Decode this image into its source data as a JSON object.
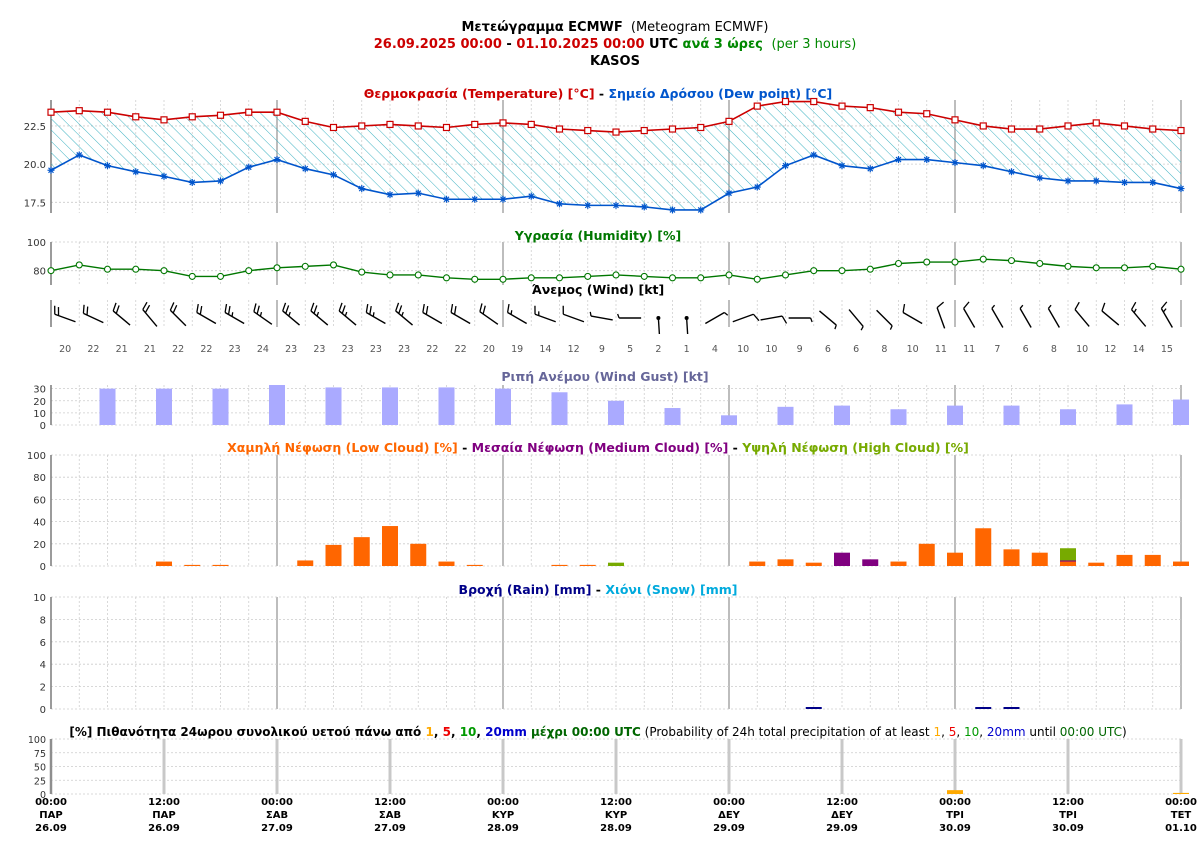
{
  "header": {
    "title_gr": "Μετεώγραμμα ECMWF",
    "title_en": "(Meteogram ECMWF)",
    "date_start": "26.09.2025 00:00",
    "date_sep": " - ",
    "date_end": "01.10.2025 00:00",
    "utc": " UTC ",
    "step_gr": "ανά 3 ώρες",
    "step_en": "(per 3 hours)",
    "location": "KASOS"
  },
  "colors": {
    "temperature": "#cc0000",
    "dew_point": "#0055cc",
    "humidity": "#007700",
    "gust_bar": "#aaaaff",
    "gust_title": "#666699",
    "low_cloud": "#ff6600",
    "medium_cloud": "#800080",
    "high_cloud": "#77aa00",
    "rain": "#000088",
    "snow": "#00aadd",
    "prob_1": "#ffaa00",
    "prob_5": "#ee0000",
    "prob_10": "#009900",
    "prob_20": "#0000cc"
  },
  "x_axis": {
    "ticks": [
      {
        "time": "00:00",
        "day": "ΠΑΡ",
        "date": "26.09"
      },
      {
        "time": "12:00",
        "day": "ΠΑΡ",
        "date": "26.09"
      },
      {
        "time": "00:00",
        "day": "ΣΑΒ",
        "date": "27.09"
      },
      {
        "time": "12:00",
        "day": "ΣΑΒ",
        "date": "27.09"
      },
      {
        "time": "00:00",
        "day": "ΚΥΡ",
        "date": "28.09"
      },
      {
        "time": "12:00",
        "day": "ΚΥΡ",
        "date": "28.09"
      },
      {
        "time": "00:00",
        "day": "ΔΕΥ",
        "date": "29.09"
      },
      {
        "time": "12:00",
        "day": "ΔΕΥ",
        "date": "29.09"
      },
      {
        "time": "00:00",
        "day": "ΤΡΙ",
        "date": "30.09"
      },
      {
        "time": "12:00",
        "day": "ΤΡΙ",
        "date": "30.09"
      },
      {
        "time": "00:00",
        "day": "ΤΕΤ",
        "date": "01.10"
      }
    ]
  },
  "chart_data": [
    {
      "id": "temp",
      "type": "line",
      "title_parts": [
        {
          "text": "Θερμοκρασία (Temperature) [°C]",
          "color": "#cc0000"
        },
        {
          "text": " - ",
          "color": "#000000"
        },
        {
          "text": "Σημείο Δρόσου (Dew point) [°C]",
          "color": "#0055cc"
        }
      ],
      "x_step_hours": 3,
      "yticks": [
        "17.5",
        "20.0",
        "22.5"
      ],
      "ylim": [
        16.8,
        24.2
      ],
      "series": [
        {
          "name": "Θερμοκρασία (Temperature) [°C]",
          "values": [
            23.4,
            23.5,
            23.4,
            23.1,
            22.9,
            23.1,
            23.2,
            23.4,
            23.4,
            22.8,
            22.4,
            22.5,
            22.6,
            22.5,
            22.4,
            22.6,
            22.7,
            22.6,
            22.3,
            22.2,
            22.1,
            22.2,
            22.3,
            22.4,
            22.8,
            23.8,
            24.1,
            24.1,
            23.8,
            23.7,
            23.4,
            23.3,
            22.9,
            22.5,
            22.3,
            22.3,
            22.5,
            22.7,
            22.5,
            22.3,
            22.2
          ]
        },
        {
          "name": "Σημείο Δρόσου (Dew point) [°C]",
          "values": [
            19.6,
            20.6,
            19.9,
            19.5,
            19.2,
            18.8,
            18.9,
            19.8,
            20.3,
            19.7,
            19.3,
            18.4,
            18.0,
            18.1,
            17.7,
            17.7,
            17.7,
            17.9,
            17.4,
            17.3,
            17.3,
            17.2,
            17.0,
            17.0,
            18.1,
            18.5,
            19.9,
            20.6,
            19.9,
            19.7,
            20.3,
            20.3,
            20.1,
            19.9,
            19.5,
            19.1,
            18.9,
            18.9,
            18.8,
            18.8,
            18.4
          ]
        }
      ]
    },
    {
      "id": "humidity",
      "type": "line",
      "title_parts": [
        {
          "text": "Υγρασία (Humidity) [%]",
          "color": "#007700"
        }
      ],
      "x_step_hours": 3,
      "yticks": [
        "80",
        "100"
      ],
      "ylim": [
        70,
        100
      ],
      "series": [
        {
          "name": "Υγρασία (Humidity) [%]",
          "values": [
            80,
            84,
            81,
            81,
            80,
            76,
            76,
            80,
            82,
            83,
            84,
            79,
            77,
            77,
            75,
            74,
            74,
            75,
            75,
            76,
            77,
            76,
            75,
            75,
            77,
            74,
            77,
            80,
            80,
            81,
            85,
            86,
            86,
            88,
            87,
            85,
            83,
            82,
            82,
            83,
            81
          ]
        }
      ]
    },
    {
      "id": "wind",
      "type": "barbs",
      "title_parts": [
        {
          "text": "Άνεμος (Wind) [kt]",
          "color": "#000000"
        }
      ],
      "x_step_hours": 3,
      "speed_labels": [
        "20",
        "22",
        "21",
        "21",
        "22",
        "22",
        "23",
        "24",
        "23",
        "23",
        "23",
        "23",
        "23",
        "22",
        "22",
        "20",
        "19",
        "14",
        "12",
        "9",
        "5",
        "2",
        "1",
        "4",
        "10",
        "10",
        "9",
        "6",
        "6",
        "8",
        "10",
        "11",
        "11",
        "7",
        "6",
        "8",
        "10",
        "12",
        "14",
        "15"
      ],
      "direction_from_deg": [
        290,
        295,
        310,
        320,
        315,
        300,
        300,
        305,
        310,
        310,
        310,
        300,
        310,
        300,
        300,
        305,
        300,
        290,
        290,
        280,
        270,
        290,
        0,
        60,
        70,
        80,
        90,
        130,
        140,
        135,
        300,
        340,
        330,
        330,
        330,
        330,
        320,
        310,
        320,
        330
      ]
    },
    {
      "id": "gust",
      "type": "bar",
      "title_parts": [
        {
          "text": "Ριπή Ανέμου (Wind Gust) [kt]",
          "color": "#666699"
        }
      ],
      "x_step_hours": 6,
      "x_offset_hours": 6,
      "yticks": [
        "0",
        "10",
        "20",
        "30"
      ],
      "ylim": [
        0,
        33
      ],
      "values": [
        30,
        30,
        30,
        33,
        31,
        31,
        31,
        30,
        27,
        20,
        14,
        8,
        15,
        16,
        13,
        16,
        16,
        13,
        17,
        21
      ]
    },
    {
      "id": "cloud",
      "type": "bar",
      "title_parts": [
        {
          "text": "Χαμηλή Νέφωση (Low Cloud) [%]",
          "color": "#ff6600"
        },
        {
          "text": " - ",
          "color": "#000000"
        },
        {
          "text": "Μεσαία Νέφωση (Medium Cloud) [%]",
          "color": "#800080"
        },
        {
          "text": " - ",
          "color": "#000000"
        },
        {
          "text": "Υψηλή Νέφωση (High Cloud) [%]",
          "color": "#77aa00"
        }
      ],
      "x_step_hours": 3,
      "yticks": [
        "0",
        "20",
        "40",
        "60",
        "80",
        "100"
      ],
      "ylim": [
        0,
        100
      ],
      "series": [
        {
          "name": "Χαμηλή Νέφωση (Low Cloud) [%]",
          "values": [
            0,
            0,
            0,
            0,
            4,
            1,
            1,
            0,
            0,
            5,
            19,
            26,
            36,
            20,
            4,
            1,
            0,
            0,
            1,
            1,
            0,
            0,
            0,
            0,
            0,
            4,
            6,
            3,
            0,
            0,
            4,
            20,
            12,
            34,
            15,
            12,
            4,
            3,
            10,
            10,
            4
          ]
        },
        {
          "name": "Μεσαία Νέφωση (Medium Cloud) [%]",
          "values": [
            0,
            0,
            0,
            0,
            0,
            0,
            0,
            0,
            0,
            0,
            0,
            0,
            0,
            0,
            0,
            0,
            0,
            0,
            0,
            0,
            0,
            0,
            0,
            0,
            0,
            0,
            0,
            0,
            12,
            6,
            0,
            0,
            0,
            0,
            0,
            0,
            5,
            0,
            0,
            0,
            0
          ]
        },
        {
          "name": "Υψηλή Νέφωση (High Cloud) [%]",
          "values": [
            0,
            0,
            0,
            0,
            0,
            0,
            0,
            0,
            0,
            0,
            0,
            0,
            0,
            0,
            0,
            0,
            0,
            0,
            0,
            0,
            3,
            0,
            0,
            0,
            0,
            0,
            0,
            0,
            0,
            0,
            0,
            0,
            0,
            0,
            0,
            0,
            16,
            0,
            0,
            0,
            0
          ]
        }
      ]
    },
    {
      "id": "precip",
      "type": "bar",
      "title_parts": [
        {
          "text": "Βροχή (Rain) [mm]",
          "color": "#000088"
        },
        {
          "text": " - ",
          "color": "#000000"
        },
        {
          "text": "Χιόνι (Snow) [mm]",
          "color": "#00aadd"
        }
      ],
      "x_step_hours": 3,
      "yticks": [
        "0",
        "2",
        "4",
        "6",
        "8",
        "10"
      ],
      "ylim": [
        0,
        10
      ],
      "series": [
        {
          "name": "Βροχή (Rain) [mm]",
          "values": [
            0,
            0,
            0,
            0,
            0,
            0,
            0,
            0,
            0,
            0,
            0,
            0,
            0,
            0,
            0,
            0,
            0,
            0,
            0,
            0,
            0,
            0,
            0,
            0,
            0,
            0,
            0,
            0.15,
            0,
            0,
            0,
            0,
            0,
            0.1,
            0.1,
            0,
            0,
            0,
            0,
            0,
            0
          ]
        },
        {
          "name": "Χιόνι (Snow) [mm]",
          "values": [
            0,
            0,
            0,
            0,
            0,
            0,
            0,
            0,
            0,
            0,
            0,
            0,
            0,
            0,
            0,
            0,
            0,
            0,
            0,
            0,
            0,
            0,
            0,
            0,
            0,
            0,
            0,
            0,
            0,
            0,
            0,
            0,
            0,
            0,
            0,
            0,
            0,
            0,
            0,
            0,
            0
          ]
        }
      ]
    },
    {
      "id": "prob",
      "type": "bar",
      "title_parts": [
        {
          "text": "[%] Πιθανότητα 24ωρου συνολικού υετού πάνω από ",
          "color": "#000000",
          "bold": true
        },
        {
          "text": "1",
          "color": "#ffaa00",
          "bold": true
        },
        {
          "text": ", ",
          "color": "#000000",
          "bold": true
        },
        {
          "text": "5",
          "color": "#ee0000",
          "bold": true
        },
        {
          "text": ", ",
          "color": "#000000",
          "bold": true
        },
        {
          "text": "10",
          "color": "#009900",
          "bold": true
        },
        {
          "text": ", ",
          "color": "#000000",
          "bold": true
        },
        {
          "text": "20mm",
          "color": "#0000cc",
          "bold": true
        },
        {
          "text": " μέχρι 00:00 UTC",
          "color": "#006600",
          "bold": true
        },
        {
          "text": " (Probability of 24h total precipitation of at least ",
          "color": "#000000",
          "bold": false
        },
        {
          "text": "1",
          "color": "#ffaa00",
          "bold": false
        },
        {
          "text": ", ",
          "color": "#000000",
          "bold": false
        },
        {
          "text": "5",
          "color": "#ee0000",
          "bold": false
        },
        {
          "text": ", ",
          "color": "#000000",
          "bold": false
        },
        {
          "text": "10",
          "color": "#009900",
          "bold": false
        },
        {
          "text": ", ",
          "color": "#000000",
          "bold": false
        },
        {
          "text": "20mm",
          "color": "#0000cc",
          "bold": false
        },
        {
          "text": " until ",
          "color": "#000000",
          "bold": false
        },
        {
          "text": "00:00 UTC",
          "color": "#006600",
          "bold": false
        },
        {
          "text": ")",
          "color": "#000000",
          "bold": false
        }
      ],
      "yticks": [
        "0",
        "25",
        "50",
        "75",
        "100"
      ],
      "ylim": [
        0,
        100
      ],
      "x_positions_hours": [
        24,
        48,
        72,
        96,
        120
      ],
      "series": [
        {
          "name": "1",
          "values": [
            0,
            0,
            0,
            7,
            2
          ]
        },
        {
          "name": "5",
          "values": [
            0,
            0,
            0,
            0,
            0
          ]
        },
        {
          "name": "10",
          "values": [
            0,
            0,
            0,
            0,
            0
          ]
        },
        {
          "name": "20mm",
          "values": [
            0,
            0,
            0,
            0,
            0
          ]
        }
      ]
    }
  ]
}
